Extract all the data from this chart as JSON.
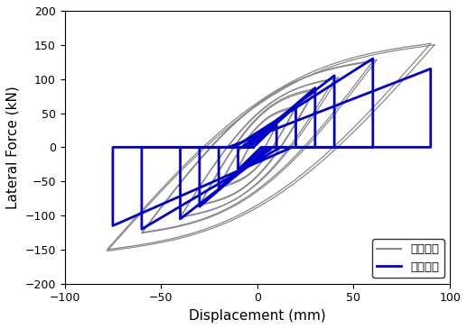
{
  "xlabel": "Displacement (mm)",
  "ylabel": "Lateral Force (kN)",
  "xlim": [
    -100,
    100
  ],
  "ylim": [
    -200,
    200
  ],
  "xticks": [
    -100,
    -50,
    0,
    50,
    100
  ],
  "yticks": [
    -200,
    -150,
    -100,
    -50,
    0,
    50,
    100,
    150,
    200
  ],
  "exp_color": "#888888",
  "ana_color": "#0000CC",
  "exp_lw": 0.9,
  "ana_lw": 2.0,
  "legend_exp": "실험결과",
  "legend_ana": "해석결과",
  "background_color": "#ffffff",
  "figsize": [
    5.17,
    3.65
  ],
  "dpi": 100
}
